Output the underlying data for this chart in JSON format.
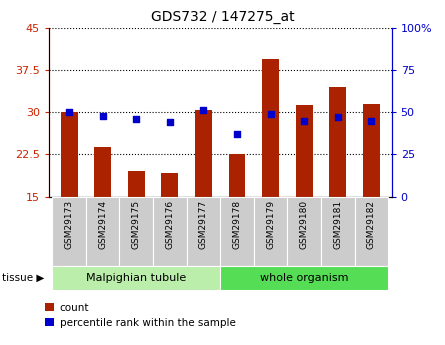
{
  "title": "GDS732 / 147275_at",
  "samples": [
    "GSM29173",
    "GSM29174",
    "GSM29175",
    "GSM29176",
    "GSM29177",
    "GSM29178",
    "GSM29179",
    "GSM29180",
    "GSM29181",
    "GSM29182"
  ],
  "count_values": [
    30.1,
    23.8,
    19.5,
    19.2,
    30.3,
    22.5,
    39.5,
    31.3,
    34.5,
    31.5
  ],
  "percentile_values": [
    50,
    48,
    46,
    44,
    51,
    37,
    49,
    45,
    47,
    45
  ],
  "ylim_left": [
    15,
    45
  ],
  "ylim_right": [
    0,
    100
  ],
  "yticks_left": [
    15,
    22.5,
    30,
    37.5,
    45
  ],
  "yticks_right": [
    0,
    25,
    50,
    75,
    100
  ],
  "bar_color": "#aa2200",
  "dot_color": "#0000cc",
  "bar_bottom": 15,
  "tissue_groups": {
    "Malpighian tubule": [
      0,
      4
    ],
    "whole organism": [
      5,
      9
    ]
  },
  "tissue_colors": {
    "Malpighian tubule": "#bbeeaa",
    "whole organism": "#55dd55"
  },
  "legend_items": [
    "count",
    "percentile rank within the sample"
  ],
  "left_axis_color": "#cc2200",
  "right_axis_color": "#0000cc",
  "tick_label_fontsize": 8,
  "title_fontsize": 10,
  "bar_width": 0.5,
  "label_fontsize": 6.5,
  "tissue_fontsize": 8
}
